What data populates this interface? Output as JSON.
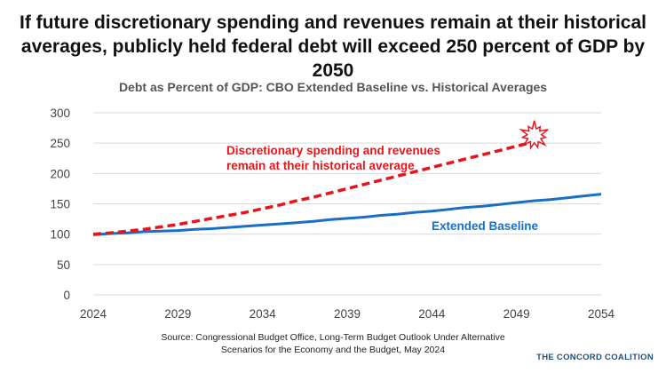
{
  "headline": {
    "line1": "If future discretionary spending and revenues remain at their historical",
    "line2": "averages, publicly held federal debt will exceed 250 percent of GDP by 2050"
  },
  "source": {
    "line1": "Source: Congressional Budget Office, Long-Term Budget Outlook Under Alternative",
    "line2": "Scenarios for the Economy and the Budget, May 2024"
  },
  "logo": "THE CONCORD COALITION",
  "chart_data": {
    "type": "line",
    "title": "Debt as Percent of GDP: CBO Extended Baseline vs. Historical Averages",
    "xlim": [
      2024,
      2054
    ],
    "ylim": [
      0,
      300
    ],
    "x_ticks": [
      "2024",
      "2029",
      "2034",
      "2039",
      "2044",
      "2049",
      "2054"
    ],
    "y_ticks": [
      "0",
      "50",
      "100",
      "150",
      "200",
      "250",
      "300"
    ],
    "grid": "horizontal",
    "legend": "none (direct labels)",
    "series": [
      {
        "name": "Extended Baseline",
        "style": "solid",
        "color": "#1a6fc4",
        "x": [
          2024,
          2025,
          2026,
          2027,
          2028,
          2029,
          2030,
          2031,
          2032,
          2033,
          2034,
          2035,
          2036,
          2037,
          2038,
          2039,
          2040,
          2041,
          2042,
          2043,
          2044,
          2045,
          2046,
          2047,
          2048,
          2049,
          2050,
          2051,
          2052,
          2053,
          2054
        ],
        "values": [
          99,
          101,
          102,
          104,
          105,
          106,
          108,
          109,
          111,
          113,
          115,
          117,
          119,
          121,
          124,
          126,
          128,
          131,
          133,
          136,
          138,
          141,
          144,
          146,
          149,
          152,
          155,
          157,
          160,
          163,
          166
        ]
      },
      {
        "name": "Discretionary spending and revenues remain at their historical average",
        "style": "dashed",
        "color": "#e8141c",
        "x": [
          2024,
          2025,
          2026,
          2027,
          2028,
          2029,
          2030,
          2031,
          2032,
          2033,
          2034,
          2035,
          2036,
          2037,
          2038,
          2039,
          2040,
          2041,
          2042,
          2043,
          2044,
          2045,
          2046,
          2047,
          2048,
          2049,
          2050
        ],
        "values": [
          100,
          102,
          105,
          108,
          112,
          116,
          121,
          126,
          131,
          136,
          142,
          148,
          155,
          161,
          168,
          175,
          182,
          189,
          196,
          203,
          210,
          217,
          224,
          231,
          238,
          245,
          252
        ]
      }
    ],
    "annotations": {
      "red_line1": "Discretionary spending and revenues",
      "red_line2": "remain at their historical average",
      "blue": "Extended Baseline"
    }
  }
}
